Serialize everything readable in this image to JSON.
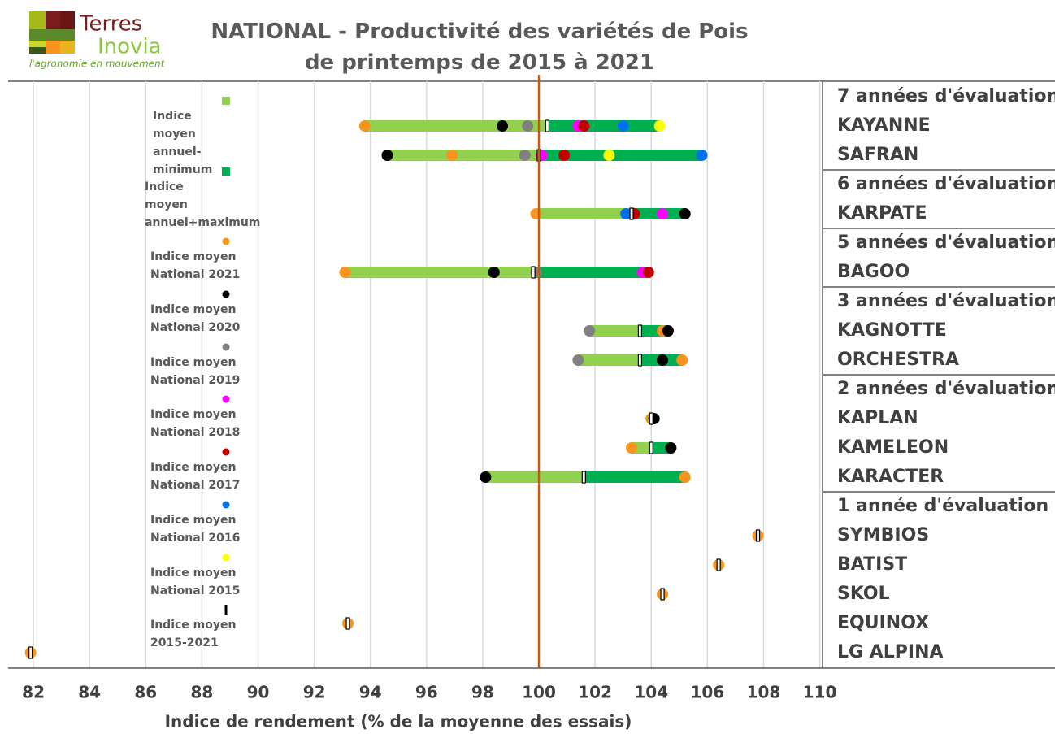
{
  "chart_data": {
    "type": "dotrange",
    "logo": {
      "name1": "Terres",
      "name2": "Inovia",
      "tagline": "l'agronomie en mouvement"
    },
    "title": "NATIONAL - Productivité des variétés de Pois de printemps  de 2015 à 2021",
    "x_label": "Indice de rendement (% de la moyenne des essais)",
    "xlim": [
      81.1,
      110.1
    ],
    "xticks": [
      82,
      84,
      86,
      88,
      90,
      92,
      94,
      96,
      98,
      100,
      102,
      104,
      106,
      108,
      110
    ],
    "grid": true,
    "reference": {
      "value": 100,
      "color": "#c55a11"
    },
    "groups": [
      {
        "label": "7 années d'évaluation",
        "categories": [
          "KAYANNE",
          "SAFRAN"
        ]
      },
      {
        "label": "6 années d'évaluation",
        "categories": [
          "KARPATE"
        ]
      },
      {
        "label": "5 années d'évaluation",
        "categories": [
          "BAGOO"
        ]
      },
      {
        "label": "3 années d'évaluation",
        "categories": [
          "KAGNOTTE",
          "ORCHESTRA"
        ]
      },
      {
        "label": "2 années d'évaluation",
        "categories": [
          "KAPLAN",
          "KAMELEON",
          "KARACTER"
        ]
      },
      {
        "label": "1 année d'évaluation",
        "categories": [
          "SYMBIOS",
          "BATIST",
          "SKOL",
          "EQUINOX",
          "LG ALPINA"
        ]
      }
    ],
    "series": [
      {
        "name": "Indice moyen annuel-minimum",
        "color": "#92d050",
        "mark": "range-low",
        "values": [
          93.8,
          94.6,
          99.9,
          93.1,
          101.8,
          101.4,
          104.0,
          103.3,
          98.1,
          107.8,
          106.4,
          104.4,
          93.2,
          81.9
        ]
      },
      {
        "name": "Indice moyen annuel+maximum",
        "color": "#00b050",
        "mark": "range-high",
        "values": [
          104.3,
          105.8,
          105.2,
          103.9,
          104.6,
          105.1,
          104.1,
          104.7,
          105.2,
          107.8,
          106.4,
          104.4,
          93.2,
          81.9
        ]
      },
      {
        "name": "Indice moyen National 2021",
        "color": "#f7941d",
        "mark": "dot",
        "values": [
          93.8,
          96.9,
          99.9,
          93.1,
          104.4,
          105.1,
          104.0,
          103.3,
          105.2,
          107.8,
          106.4,
          104.4,
          93.2,
          81.9
        ]
      },
      {
        "name": "Indice moyen National 2020",
        "color": "#000000",
        "mark": "dot",
        "values": [
          98.7,
          94.6,
          105.2,
          98.4,
          104.6,
          104.4,
          104.1,
          104.7,
          98.1,
          null,
          null,
          null,
          null,
          null
        ]
      },
      {
        "name": "Indice moyen National 2019",
        "color": "#808080",
        "mark": "dot",
        "values": [
          99.6,
          99.5,
          103.3,
          99.9,
          101.8,
          101.4,
          null,
          null,
          null,
          null,
          null,
          null,
          null,
          null
        ]
      },
      {
        "name": "Indice moyen National 2018",
        "color": "#ff00ff",
        "mark": "dot",
        "values": [
          101.4,
          100.1,
          104.4,
          103.7,
          null,
          null,
          null,
          null,
          null,
          null,
          null,
          null,
          null,
          null
        ]
      },
      {
        "name": "Indice moyen National 2017",
        "color": "#c00000",
        "mark": "dot",
        "values": [
          101.6,
          100.9,
          103.4,
          103.9,
          null,
          null,
          null,
          null,
          null,
          null,
          null,
          null,
          null,
          null
        ]
      },
      {
        "name": "Indice moyen National 2016",
        "color": "#0070f0",
        "mark": "dot",
        "values": [
          103.0,
          105.8,
          103.1,
          null,
          null,
          null,
          null,
          null,
          null,
          null,
          null,
          null,
          null,
          null
        ]
      },
      {
        "name": "Indice moyen National 2015",
        "color": "#ffff00",
        "mark": "dot",
        "values": [
          104.3,
          102.5,
          null,
          null,
          null,
          null,
          null,
          null,
          null,
          null,
          null,
          null,
          null,
          null
        ]
      },
      {
        "name": "Indice moyen 2015-2021",
        "color": "#000000",
        "mark": "tick",
        "values": [
          100.3,
          100.0,
          103.3,
          99.8,
          103.6,
          103.6,
          104.0,
          104.0,
          101.6,
          107.8,
          106.4,
          104.4,
          93.2,
          81.9
        ]
      }
    ]
  }
}
